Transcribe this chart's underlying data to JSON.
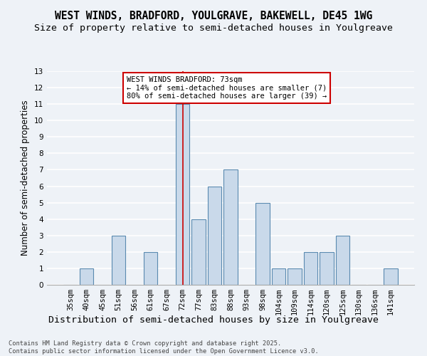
{
  "title1": "WEST WINDS, BRADFORD, YOULGRAVE, BAKEWELL, DE45 1WG",
  "title2": "Size of property relative to semi-detached houses in Youlgreave",
  "xlabel": "Distribution of semi-detached houses by size in Youlgreave",
  "ylabel": "Number of semi-detached properties",
  "categories": [
    "35sqm",
    "40sqm",
    "45sqm",
    "51sqm",
    "56sqm",
    "61sqm",
    "67sqm",
    "72sqm",
    "77sqm",
    "83sqm",
    "88sqm",
    "93sqm",
    "98sqm",
    "104sqm",
    "109sqm",
    "114sqm",
    "120sqm",
    "125sqm",
    "130sqm",
    "136sqm",
    "141sqm"
  ],
  "values": [
    0,
    1,
    0,
    3,
    0,
    2,
    0,
    11,
    4,
    6,
    7,
    0,
    5,
    1,
    1,
    2,
    2,
    3,
    0,
    0,
    1
  ],
  "bar_color": "#c9d9ea",
  "bar_edge_color": "#5a8ab0",
  "highlight_index": 7,
  "highlight_line_color": "#cc0000",
  "annotation_line1": "WEST WINDS BRADFORD: 73sqm",
  "annotation_line2": "← 14% of semi-detached houses are smaller (7)",
  "annotation_line3": "80% of semi-detached houses are larger (39) →",
  "annotation_box_color": "#ffffff",
  "annotation_box_edge": "#cc0000",
  "ylim_max": 13,
  "yticks": [
    0,
    1,
    2,
    3,
    4,
    5,
    6,
    7,
    8,
    9,
    10,
    11,
    12,
    13
  ],
  "footer1": "Contains HM Land Registry data © Crown copyright and database right 2025.",
  "footer2": "Contains public sector information licensed under the Open Government Licence v3.0.",
  "background_color": "#eef2f7",
  "grid_color": "#ffffff",
  "title_fontsize": 10.5,
  "subtitle_fontsize": 9.5,
  "tick_fontsize": 7.5,
  "ylabel_fontsize": 8.5,
  "xlabel_fontsize": 9.5
}
